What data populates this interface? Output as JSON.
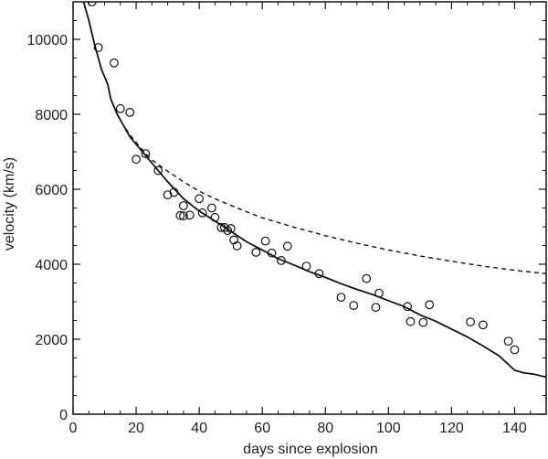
{
  "chart_data": {
    "type": "scatter",
    "xlabel": "days since explosion",
    "ylabel": "velocity (km/s)",
    "xlim": [
      0,
      150
    ],
    "ylim": [
      0,
      11000
    ],
    "xticks": [
      0,
      20,
      40,
      60,
      80,
      100,
      120,
      140
    ],
    "yticks": [
      0,
      2000,
      4000,
      6000,
      8000,
      10000
    ],
    "grid": false,
    "observations": {
      "marker": "open-circle",
      "points": [
        [
          6,
          11000
        ],
        [
          8,
          9780
        ],
        [
          13,
          9370
        ],
        [
          15,
          8150
        ],
        [
          18,
          8050
        ],
        [
          20,
          6800
        ],
        [
          23,
          6950
        ],
        [
          27,
          6500
        ],
        [
          30,
          5850
        ],
        [
          32,
          5920
        ],
        [
          34,
          5300
        ],
        [
          35,
          5560
        ],
        [
          35,
          5290
        ],
        [
          37,
          5310
        ],
        [
          40,
          5750
        ],
        [
          41,
          5370
        ],
        [
          44,
          5500
        ],
        [
          45,
          5250
        ],
        [
          47,
          4980
        ],
        [
          48,
          4980
        ],
        [
          49,
          4900
        ],
        [
          50,
          4950
        ],
        [
          51,
          4650
        ],
        [
          52,
          4490
        ],
        [
          58,
          4320
        ],
        [
          61,
          4620
        ],
        [
          63,
          4300
        ],
        [
          66,
          4100
        ],
        [
          68,
          4480
        ],
        [
          74,
          3950
        ],
        [
          78,
          3750
        ],
        [
          85,
          3120
        ],
        [
          89,
          2900
        ],
        [
          93,
          3620
        ],
        [
          96,
          2850
        ],
        [
          97,
          3230
        ],
        [
          106,
          2870
        ],
        [
          107,
          2470
        ],
        [
          111,
          2450
        ],
        [
          113,
          2920
        ],
        [
          126,
          2460
        ],
        [
          130,
          2380
        ],
        [
          138,
          1950
        ],
        [
          140,
          1720
        ]
      ]
    },
    "solid_model": {
      "style": "solid",
      "points": [
        [
          3,
          11100
        ],
        [
          5,
          10500
        ],
        [
          7,
          9800
        ],
        [
          9,
          9200
        ],
        [
          11,
          8800
        ],
        [
          12,
          8400
        ],
        [
          14,
          8000
        ],
        [
          16,
          7700
        ],
        [
          18,
          7400
        ],
        [
          20,
          7200
        ],
        [
          22,
          7000
        ],
        [
          25,
          6700
        ],
        [
          30,
          6200
        ],
        [
          35,
          5750
        ],
        [
          40,
          5420
        ],
        [
          45,
          5150
        ],
        [
          50,
          4880
        ],
        [
          55,
          4600
        ],
        [
          60,
          4380
        ],
        [
          65,
          4150
        ],
        [
          70,
          3980
        ],
        [
          75,
          3800
        ],
        [
          80,
          3650
        ],
        [
          85,
          3480
        ],
        [
          90,
          3330
        ],
        [
          95,
          3190
        ],
        [
          100,
          3030
        ],
        [
          105,
          2870
        ],
        [
          110,
          2650
        ],
        [
          115,
          2480
        ],
        [
          120,
          2270
        ],
        [
          125,
          2060
        ],
        [
          130,
          1820
        ],
        [
          135,
          1560
        ],
        [
          138,
          1330
        ],
        [
          140,
          1170
        ],
        [
          143,
          1100
        ],
        [
          146,
          1070
        ],
        [
          150,
          990
        ]
      ]
    },
    "dashed_model": {
      "style": "dashed",
      "points": [
        [
          12,
          8400
        ],
        [
          14,
          8000
        ],
        [
          16,
          7700
        ],
        [
          18,
          7450
        ],
        [
          20,
          7250
        ],
        [
          22,
          7050
        ],
        [
          25,
          6780
        ],
        [
          30,
          6480
        ],
        [
          35,
          6200
        ],
        [
          40,
          5950
        ],
        [
          45,
          5750
        ],
        [
          50,
          5570
        ],
        [
          55,
          5400
        ],
        [
          60,
          5240
        ],
        [
          70,
          4990
        ],
        [
          80,
          4760
        ],
        [
          90,
          4560
        ],
        [
          100,
          4380
        ],
        [
          110,
          4220
        ],
        [
          120,
          4080
        ],
        [
          130,
          3950
        ],
        [
          140,
          3840
        ],
        [
          150,
          3750
        ]
      ]
    }
  }
}
